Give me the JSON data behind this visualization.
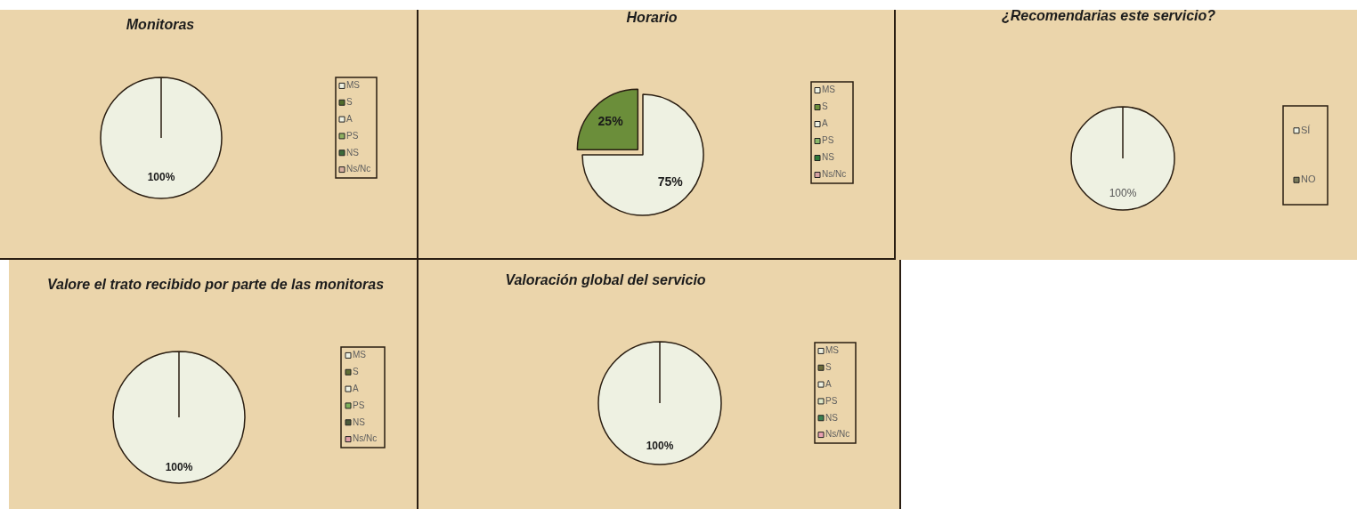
{
  "chart_data": [
    {
      "type": "pie",
      "title": "Monitoras",
      "categories": [
        "MS",
        "S",
        "A",
        "PS",
        "NS",
        "Ns/Nc"
      ],
      "values": [
        100,
        0,
        0,
        0,
        0,
        0
      ],
      "colors": [
        "#eef1e2",
        "#4f6b2a",
        "#eef1e2",
        "#8fb060",
        "#3b6a3a",
        "#d8b0a0"
      ],
      "value_labels": [
        "100%",
        null,
        null,
        null,
        null,
        null
      ],
      "legend": "right"
    },
    {
      "type": "pie",
      "title": "Horario",
      "categories": [
        "MS",
        "S",
        "A",
        "PS",
        "NS",
        "Ns/Nc"
      ],
      "values": [
        75,
        25,
        0,
        0,
        0,
        0
      ],
      "colors": [
        "#eef1e2",
        "#6b8e3a",
        "#eef1e2",
        "#8ab86a",
        "#2f7a3a",
        "#d4a0a0"
      ],
      "value_labels": [
        "75%",
        "25%",
        null,
        null,
        null,
        null
      ],
      "legend": "right"
    },
    {
      "type": "pie",
      "title": "¿Recomendarias este servicio?",
      "categories": [
        "SÍ",
        "NO"
      ],
      "values": [
        100,
        0
      ],
      "colors": [
        "#eef1e2",
        "#7a7a5a"
      ],
      "value_labels": [
        "100%",
        null
      ],
      "legend": "right"
    },
    {
      "type": "pie",
      "title": "Valore el trato recibido por parte de las monitoras",
      "categories": [
        "MS",
        "S",
        "A",
        "PS",
        "NS",
        "Ns/Nc"
      ],
      "values": [
        100,
        0,
        0,
        0,
        0,
        0
      ],
      "colors": [
        "#eef1e2",
        "#5f6e35",
        "#eef1e2",
        "#7cb05a",
        "#4a5a3a",
        "#e0a0a8"
      ],
      "value_labels": [
        "100%",
        null,
        null,
        null,
        null,
        null
      ],
      "legend": "right"
    },
    {
      "type": "pie",
      "title": "Valoración global del servicio",
      "categories": [
        "MS",
        "S",
        "A",
        "PS",
        "NS",
        "Ns/Nc"
      ],
      "values": [
        100,
        0,
        0,
        0,
        0,
        0
      ],
      "colors": [
        "#eef1e2",
        "#6b6b3a",
        "#eef1e2",
        "#dfe8c8",
        "#3a8050",
        "#e8a0b0"
      ],
      "value_labels": [
        "100%",
        null,
        null,
        null,
        null,
        null
      ],
      "legend": "right"
    }
  ]
}
